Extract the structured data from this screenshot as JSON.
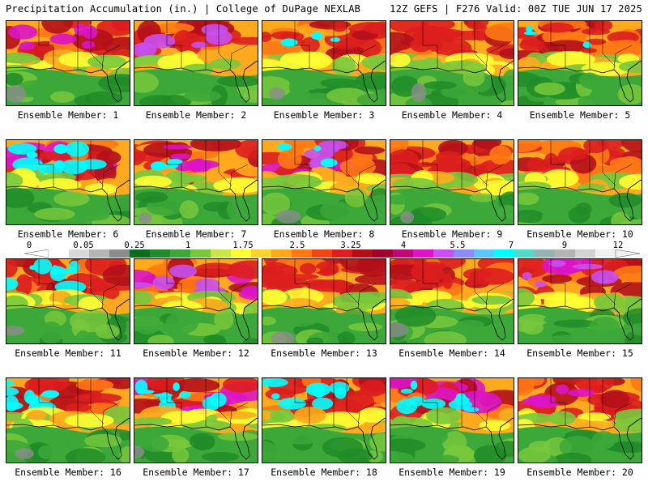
{
  "header": {
    "left": "Precipitation Accumulation (in.) | College of DuPage NEXLAB",
    "right": "12Z GEFS | F276 Valid: 00Z TUE JUN 17 2025"
  },
  "members": [
    {
      "label": "Ensemble Member: 1"
    },
    {
      "label": "Ensemble Member: 2"
    },
    {
      "label": "Ensemble Member: 3"
    },
    {
      "label": "Ensemble Member: 4"
    },
    {
      "label": "Ensemble Member: 5"
    },
    {
      "label": "Ensemble Member: 6"
    },
    {
      "label": "Ensemble Member: 7"
    },
    {
      "label": "Ensemble Member: 8"
    },
    {
      "label": "Ensemble Member: 9"
    },
    {
      "label": "Ensemble Member: 10"
    },
    {
      "label": "Ensemble Member: 11"
    },
    {
      "label": "Ensemble Member: 12"
    },
    {
      "label": "Ensemble Member: 13"
    },
    {
      "label": "Ensemble Member: 14"
    },
    {
      "label": "Ensemble Member: 15"
    },
    {
      "label": "Ensemble Member: 16"
    },
    {
      "label": "Ensemble Member: 17"
    },
    {
      "label": "Ensemble Member: 18"
    },
    {
      "label": "Ensemble Member: 19"
    },
    {
      "label": "Ensemble Member: 20"
    }
  ],
  "colorbar": {
    "tick_labels": [
      "0",
      "0.05",
      "0.25",
      "1",
      "1.75",
      "2.5",
      "3.25",
      "4",
      "5.5",
      "7",
      "9",
      "12"
    ],
    "colors": [
      "#ffffff",
      "#d8d8d8",
      "#b4b4b4",
      "#8c8c8c",
      "#0a6e1e",
      "#1e8c28",
      "#3ca83a",
      "#78c83c",
      "#c8e646",
      "#ffff32",
      "#ffd232",
      "#ffaa1e",
      "#ff7814",
      "#f04614",
      "#dc1e1e",
      "#b40f19",
      "#a0002d",
      "#be0a78",
      "#dc14c8",
      "#c850f0",
      "#8c8cff",
      "#5ac8ff",
      "#00ffff",
      "#50dcc8",
      "#96b4b4",
      "#b4b4b4",
      "#d2d2d2",
      "#f0f0f0"
    ]
  }
}
